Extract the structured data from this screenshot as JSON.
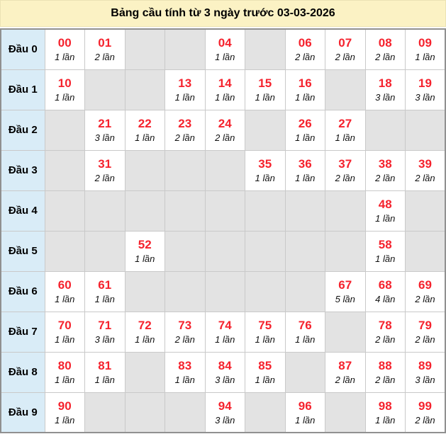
{
  "title": "Bảng cầu tính từ 3 ngày trước 03-03-2026",
  "colors": {
    "title_bg": "#fbf2c4",
    "label_bg": "#d9ecf7",
    "empty_cell_bg": "#e3e3e3",
    "filled_cell_bg": "#ffffff",
    "number_red": "#f5222d",
    "inner_border": "#c9c9c9",
    "outer_border": "#909090"
  },
  "rows": [
    {
      "label": "Đầu 0",
      "cells": [
        {
          "num": "00",
          "times": "1 lần"
        },
        {
          "num": "01",
          "times": "2 lần"
        },
        null,
        null,
        {
          "num": "04",
          "times": "1 lần"
        },
        null,
        {
          "num": "06",
          "times": "2 lần"
        },
        {
          "num": "07",
          "times": "2 lần"
        },
        {
          "num": "08",
          "times": "2 lần"
        },
        {
          "num": "09",
          "times": "1 lần"
        }
      ]
    },
    {
      "label": "Đầu 1",
      "cells": [
        {
          "num": "10",
          "times": "1 lần"
        },
        null,
        null,
        {
          "num": "13",
          "times": "1 lần"
        },
        {
          "num": "14",
          "times": "1 lần"
        },
        {
          "num": "15",
          "times": "1 lần"
        },
        {
          "num": "16",
          "times": "1 lần"
        },
        null,
        {
          "num": "18",
          "times": "3 lần"
        },
        {
          "num": "19",
          "times": "3 lần"
        }
      ]
    },
    {
      "label": "Đầu 2",
      "cells": [
        null,
        {
          "num": "21",
          "times": "3 lần"
        },
        {
          "num": "22",
          "times": "1 lần"
        },
        {
          "num": "23",
          "times": "2 lần"
        },
        {
          "num": "24",
          "times": "2 lần"
        },
        null,
        {
          "num": "26",
          "times": "1 lần"
        },
        {
          "num": "27",
          "times": "1 lần"
        },
        null,
        null
      ]
    },
    {
      "label": "Đầu 3",
      "cells": [
        null,
        {
          "num": "31",
          "times": "2 lần"
        },
        null,
        null,
        null,
        {
          "num": "35",
          "times": "1 lần"
        },
        {
          "num": "36",
          "times": "1 lần"
        },
        {
          "num": "37",
          "times": "2 lần"
        },
        {
          "num": "38",
          "times": "2 lần"
        },
        {
          "num": "39",
          "times": "2 lần"
        }
      ]
    },
    {
      "label": "Đầu 4",
      "cells": [
        null,
        null,
        null,
        null,
        null,
        null,
        null,
        null,
        {
          "num": "48",
          "times": "1 lần"
        },
        null
      ]
    },
    {
      "label": "Đầu 5",
      "cells": [
        null,
        null,
        {
          "num": "52",
          "times": "1 lần"
        },
        null,
        null,
        null,
        null,
        null,
        {
          "num": "58",
          "times": "1 lần"
        },
        null
      ]
    },
    {
      "label": "Đầu 6",
      "cells": [
        {
          "num": "60",
          "times": "1 lần"
        },
        {
          "num": "61",
          "times": "1 lần"
        },
        null,
        null,
        null,
        null,
        null,
        {
          "num": "67",
          "times": "5 lần"
        },
        {
          "num": "68",
          "times": "4 lần"
        },
        {
          "num": "69",
          "times": "2 lần"
        }
      ]
    },
    {
      "label": "Đầu 7",
      "cells": [
        {
          "num": "70",
          "times": "1 lần"
        },
        {
          "num": "71",
          "times": "3 lần"
        },
        {
          "num": "72",
          "times": "1 lần"
        },
        {
          "num": "73",
          "times": "2 lần"
        },
        {
          "num": "74",
          "times": "1 lần"
        },
        {
          "num": "75",
          "times": "1 lần"
        },
        {
          "num": "76",
          "times": "1 lần"
        },
        null,
        {
          "num": "78",
          "times": "2 lần"
        },
        {
          "num": "79",
          "times": "2 lần"
        }
      ]
    },
    {
      "label": "Đầu 8",
      "cells": [
        {
          "num": "80",
          "times": "1 lần"
        },
        {
          "num": "81",
          "times": "1 lần"
        },
        null,
        {
          "num": "83",
          "times": "1 lần"
        },
        {
          "num": "84",
          "times": "3 lần"
        },
        {
          "num": "85",
          "times": "1 lần"
        },
        null,
        {
          "num": "87",
          "times": "2 lần"
        },
        {
          "num": "88",
          "times": "2 lần"
        },
        {
          "num": "89",
          "times": "3 lần"
        }
      ]
    },
    {
      "label": "Đầu 9",
      "cells": [
        {
          "num": "90",
          "times": "1 lần"
        },
        null,
        null,
        null,
        {
          "num": "94",
          "times": "3 lần"
        },
        null,
        {
          "num": "96",
          "times": "1 lần"
        },
        null,
        {
          "num": "98",
          "times": "1 lần"
        },
        {
          "num": "99",
          "times": "2 lần"
        }
      ]
    }
  ]
}
